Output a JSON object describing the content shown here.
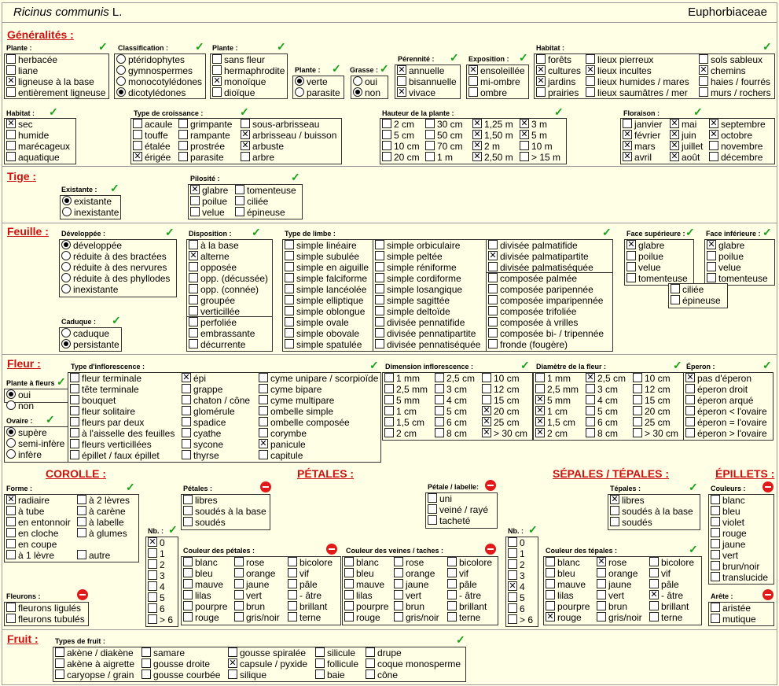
{
  "header": {
    "species": "Ricinus communis",
    "author": "L.",
    "family": "Euphorbiaceae"
  },
  "sections": {
    "generalites": "Généralités :",
    "tige": "Tige :",
    "feuille": "Feuille :",
    "fleur": "Fleur :",
    "fruit": "Fruit :",
    "corolle": "COROLLE :",
    "petales": "PÉTALES :",
    "sepales": "SÉPALES / TÉPALES :",
    "epillets": "ÉPILLETS :"
  },
  "labels": {
    "plante1": "Plante :",
    "classification": "Classification :",
    "plante2": "Plante :",
    "plante3": "Plante :",
    "grasse": "Grasse :",
    "perennite": "Pérennité :",
    "exposition": "Exposition :",
    "habitat1": "Habitat :",
    "habitat2": "Habitat :",
    "croissance": "Type de croissance :",
    "hauteur": "Hauteur de la plante :",
    "floraison": "Floraison :",
    "existante": "Existante :",
    "pilosite": "Pilosité :",
    "developpee": "Développée :",
    "disposition": "Disposition :",
    "limbe": "Type de limbe :",
    "face_sup": "Face supérieure :",
    "face_inf": "Face inférieure :",
    "caduque": "Caduque :",
    "inflorescence": "Type d'inflorescence :",
    "dim_infl": "Dimension inflorescence :",
    "diam_fleur": "Diamètre de la fleur :",
    "eperon": "Éperon :",
    "plante_fleurs": "Plante à fleurs",
    "ovaire": "Ovaire :",
    "forme": "Forme :",
    "fleurons": "Fleurons :",
    "petales": "Pétales :",
    "petale_labelle": "Pétale / labelle:",
    "nb1": "Nb. :",
    "couleur_petales": "Couleur des pétales :",
    "couleur_veines": "Couleur des veines / taches :",
    "tepales": "Tépales :",
    "nb2": "Nb. :",
    "couleur_tepales": "Couleur des tépales :",
    "couleurs": "Couleurs :",
    "arete": "Arête :",
    "types_fruit": "Types de fruit :"
  },
  "options": {
    "plante1": [
      [
        "herbacée",
        0
      ],
      [
        "liane",
        0
      ],
      [
        "ligneuse à la base",
        1
      ],
      [
        "entièrement ligneuse",
        0
      ]
    ],
    "classification": [
      [
        "ptéridophytes",
        0
      ],
      [
        "gymnospermes",
        0
      ],
      [
        "monocotylédones",
        0
      ],
      [
        "dicotylédones",
        1
      ]
    ],
    "plante2": [
      [
        "sans fleur",
        0
      ],
      [
        "hermaphrodite",
        0
      ],
      [
        "monoïque",
        1
      ],
      [
        "dioïque",
        0
      ]
    ],
    "plante3": [
      [
        "verte",
        1
      ],
      [
        "parasite",
        0
      ]
    ],
    "grasse": [
      [
        "oui",
        0
      ],
      [
        "non",
        1
      ]
    ],
    "perennite": [
      [
        "annuelle",
        1
      ],
      [
        "bisannuelle",
        0
      ],
      [
        "vivace",
        1
      ]
    ],
    "exposition": [
      [
        "ensoleillée",
        1
      ],
      [
        "mi-ombre",
        0
      ],
      [
        "ombre",
        0
      ]
    ],
    "habitat1a": [
      [
        "forêts",
        0
      ],
      [
        "cultures",
        1
      ],
      [
        "jardins",
        1
      ],
      [
        "prairies",
        0
      ]
    ],
    "habitat1b": [
      [
        "lieux pierreux",
        0
      ],
      [
        "lieux incultes",
        1
      ],
      [
        "lieux humides / mares",
        0
      ],
      [
        "lieux saumâtres / mer",
        0
      ]
    ],
    "habitat1c": [
      [
        "sols sableux",
        0
      ],
      [
        "chemins",
        1
      ],
      [
        "haies / fourrés",
        0
      ],
      [
        "murs / rochers",
        0
      ]
    ],
    "habitat2": [
      [
        "sec",
        1
      ],
      [
        "humide",
        0
      ],
      [
        "marécageux",
        0
      ],
      [
        "aquatique",
        0
      ]
    ],
    "croissance_a": [
      [
        "acaule",
        0
      ],
      [
        "touffe",
        0
      ],
      [
        "étalée",
        0
      ],
      [
        "érigée",
        1
      ]
    ],
    "croissance_b": [
      [
        "grimpante",
        0
      ],
      [
        "rampante",
        0
      ],
      [
        "prostrée",
        0
      ],
      [
        "parasite",
        0
      ]
    ],
    "croissance_c": [
      [
        "sous-arbrisseau",
        0
      ],
      [
        "arbrisseau / buisson",
        1
      ],
      [
        "arbuste",
        1
      ],
      [
        "arbre",
        0
      ]
    ],
    "hauteur_a": [
      [
        "2 cm",
        0
      ],
      [
        "5 cm",
        0
      ],
      [
        "10 cm",
        0
      ],
      [
        "20 cm",
        0
      ]
    ],
    "hauteur_b": [
      [
        "30 cm",
        0
      ],
      [
        "50 cm",
        0
      ],
      [
        "70 cm",
        0
      ],
      [
        "1 m",
        0
      ]
    ],
    "hauteur_c": [
      [
        "1,25 m",
        1
      ],
      [
        "1,50 m",
        1
      ],
      [
        "2 m",
        1
      ],
      [
        "2,50 m",
        1
      ]
    ],
    "hauteur_d": [
      [
        "3 m",
        1
      ],
      [
        "5 m",
        1
      ],
      [
        "10 m",
        0
      ],
      [
        "> 15 m",
        0
      ]
    ],
    "floraison_a": [
      [
        "janvier",
        0
      ],
      [
        "février",
        1
      ],
      [
        "mars",
        1
      ],
      [
        "avril",
        1
      ]
    ],
    "floraison_b": [
      [
        "mai",
        1
      ],
      [
        "juin",
        1
      ],
      [
        "juillet",
        1
      ],
      [
        "août",
        1
      ]
    ],
    "floraison_c": [
      [
        "septembre",
        1
      ],
      [
        "octobre",
        1
      ],
      [
        "novembre",
        0
      ],
      [
        "décembre",
        0
      ]
    ],
    "existante": [
      [
        "existante",
        1
      ],
      [
        "inexistante",
        0
      ]
    ],
    "pilosite_a": [
      [
        "glabre",
        1
      ],
      [
        "poilue",
        0
      ],
      [
        "velue",
        0
      ]
    ],
    "pilosite_b": [
      [
        "tomenteuse",
        0
      ],
      [
        "ciliée",
        0
      ],
      [
        "épineuse",
        0
      ]
    ],
    "developpee": [
      [
        "développée",
        1
      ],
      [
        "réduite à des bractées",
        0
      ],
      [
        "réduite à des nervures",
        0
      ],
      [
        "réduite à des phyllodes",
        0
      ],
      [
        "inexistante",
        0
      ]
    ],
    "caduque": [
      [
        "caduque",
        0
      ],
      [
        "persistante",
        1
      ]
    ],
    "disposition_a": [
      [
        "à la base",
        0
      ],
      [
        "alterne",
        1
      ],
      [
        "opposée",
        0
      ],
      [
        "opp. (décussée)",
        0
      ],
      [
        "opp. (connée)",
        0
      ],
      [
        "groupée",
        0
      ],
      [
        "verticillée",
        0
      ]
    ],
    "disposition_b": [
      [
        "perfoliée",
        0
      ],
      [
        "embrassante",
        0
      ],
      [
        "décurrente",
        0
      ]
    ],
    "limbe_a": [
      [
        "simple linéaire",
        0
      ],
      [
        "simple subulée",
        0
      ],
      [
        "simple en aiguille",
        0
      ],
      [
        "simple falciforme",
        0
      ],
      [
        "simple lancéolée",
        0
      ],
      [
        "simple elliptique",
        0
      ],
      [
        "simple oblongue",
        0
      ],
      [
        "simple ovale",
        0
      ],
      [
        "simple obovale",
        0
      ],
      [
        "simple spatulée",
        0
      ]
    ],
    "limbe_b": [
      [
        "simple orbiculaire",
        0
      ],
      [
        "simple peltée",
        0
      ],
      [
        "simple réniforme",
        0
      ],
      [
        "simple cordiforme",
        0
      ],
      [
        "simple losangique",
        0
      ],
      [
        "simple sagittée",
        0
      ],
      [
        "simple deltoïde",
        0
      ],
      [
        "divisée pennatifide",
        0
      ],
      [
        "divisée pennatipartite",
        0
      ],
      [
        "divisée pennatiséquée",
        0
      ]
    ],
    "limbe_c": [
      [
        "divisée palmatifide",
        0
      ],
      [
        "divisée palmatipartite",
        1
      ],
      [
        "divisée palmatiséquée",
        0
      ]
    ],
    "limbe_d": [
      [
        "composée palmée",
        0
      ],
      [
        "composée paripennée",
        0
      ],
      [
        "composée imparipennée",
        0
      ],
      [
        "composée trifoliée",
        0
      ],
      [
        "composée à vrilles",
        0
      ],
      [
        "composée bi- / tripennée",
        0
      ],
      [
        "fronde (fougère)",
        0
      ]
    ],
    "face_sup": [
      [
        "glabre",
        1
      ],
      [
        "poilue",
        0
      ],
      [
        "velue",
        0
      ],
      [
        "tomenteuse",
        0
      ]
    ],
    "face_inf": [
      [
        "glabre",
        1
      ],
      [
        "poilue",
        0
      ],
      [
        "velue",
        0
      ],
      [
        "tomenteuse",
        0
      ]
    ],
    "face_inf2": [
      [
        "ciliée",
        0
      ],
      [
        "épineuse",
        0
      ]
    ],
    "plante_fleurs": [
      [
        "oui",
        1
      ],
      [
        "non",
        0
      ]
    ],
    "ovaire": [
      [
        "supère",
        1
      ],
      [
        "semi-infère",
        0
      ],
      [
        "infère",
        0
      ]
    ],
    "infl_a": [
      [
        "fleur terminale",
        0
      ],
      [
        "tête terminale",
        0
      ],
      [
        "bouquet",
        0
      ],
      [
        "fleur solitaire",
        0
      ],
      [
        "fleurs par deux",
        0
      ],
      [
        "à l'aisselle des feuilles",
        0
      ],
      [
        "fleurs verticillées",
        0
      ],
      [
        "épillet / faux épillet",
        0
      ]
    ],
    "infl_b": [
      [
        "épi",
        1
      ],
      [
        "grappe",
        0
      ],
      [
        "chaton / cône",
        0
      ],
      [
        "glomérule",
        0
      ],
      [
        "spadice",
        0
      ],
      [
        "cyathe",
        0
      ],
      [
        "sycone",
        0
      ],
      [
        "thyrse",
        0
      ]
    ],
    "infl_c": [
      [
        "cyme unipare / scorpioïde",
        0
      ],
      [
        "cyme bipare",
        0
      ],
      [
        "cyme multipare",
        0
      ],
      [
        "ombelle simple",
        0
      ],
      [
        "ombelle composée",
        0
      ],
      [
        "corymbe",
        0
      ],
      [
        "panicule",
        1
      ],
      [
        "capitule",
        0
      ]
    ],
    "dim_a": [
      [
        "1 mm",
        0
      ],
      [
        "2,5 mm",
        0
      ],
      [
        "5 mm",
        0
      ],
      [
        "1 cm",
        0
      ],
      [
        "1,5 cm",
        0
      ],
      [
        "2 cm",
        0
      ]
    ],
    "dim_b": [
      [
        "2,5 cm",
        0
      ],
      [
        "3 cm",
        0
      ],
      [
        "4 cm",
        0
      ],
      [
        "5 cm",
        0
      ],
      [
        "6 cm",
        0
      ],
      [
        "8 cm",
        0
      ]
    ],
    "dim_c": [
      [
        "10 cm",
        0
      ],
      [
        "12 cm",
        0
      ],
      [
        "15 cm",
        0
      ],
      [
        "20 cm",
        1
      ],
      [
        "25 cm",
        1
      ],
      [
        "> 30 cm",
        1
      ]
    ],
    "diam_a": [
      [
        "1 mm",
        0
      ],
      [
        "2,5 mm",
        0
      ],
      [
        "5 mm",
        1
      ],
      [
        "1 cm",
        1
      ],
      [
        "1,5 cm",
        1
      ],
      [
        "2 cm",
        1
      ]
    ],
    "diam_b": [
      [
        "2,5 cm",
        1
      ],
      [
        "3 cm",
        0
      ],
      [
        "4 cm",
        0
      ],
      [
        "5 cm",
        0
      ],
      [
        "6 cm",
        0
      ],
      [
        "8 cm",
        0
      ]
    ],
    "diam_c": [
      [
        "10 cm",
        0
      ],
      [
        "12 cm",
        0
      ],
      [
        "15 cm",
        0
      ],
      [
        "20 cm",
        0
      ],
      [
        "25 cm",
        0
      ],
      [
        "> 30 cm",
        0
      ]
    ],
    "eperon": [
      [
        "pas d'éperon",
        1
      ],
      [
        "éperon droit",
        0
      ],
      [
        "éperon arqué",
        0
      ],
      [
        "éperon < l'ovaire",
        0
      ],
      [
        "éperon = l'ovaire",
        0
      ],
      [
        "éperon > l'ovaire",
        0
      ]
    ],
    "forme_a": [
      [
        "radiaire",
        1
      ],
      [
        "à tube",
        0
      ],
      [
        "en entonnoir",
        0
      ],
      [
        "en cloche",
        0
      ],
      [
        "en coupe",
        0
      ],
      [
        "à 1 lèvre",
        0
      ]
    ],
    "forme_b": [
      [
        "à 2 lèvres",
        0
      ],
      [
        "à carène",
        0
      ],
      [
        "à labelle",
        0
      ],
      [
        "à glumes",
        0
      ],
      [
        "",
        0
      ],
      [
        "autre",
        0
      ]
    ],
    "fleurons": [
      [
        "fleurons ligulés",
        0
      ],
      [
        "fleurons tubulés",
        0
      ]
    ],
    "nb1": [
      [
        "0",
        1
      ],
      [
        "1",
        0
      ],
      [
        "2",
        0
      ],
      [
        "3",
        0
      ],
      [
        "4",
        0
      ],
      [
        "5",
        0
      ],
      [
        "6",
        0
      ],
      [
        "> 6",
        0
      ]
    ],
    "petales": [
      [
        "libres",
        0
      ],
      [
        "soudés à la base",
        0
      ],
      [
        "soudés",
        0
      ]
    ],
    "labelle": [
      [
        "uni",
        0
      ],
      [
        "veiné / rayé",
        0
      ],
      [
        "tacheté",
        0
      ]
    ],
    "cp_a": [
      [
        "blanc",
        0
      ],
      [
        "bleu",
        0
      ],
      [
        "mauve",
        0
      ],
      [
        "lilas",
        0
      ],
      [
        "pourpre",
        0
      ],
      [
        "rouge",
        0
      ]
    ],
    "cp_b": [
      [
        "rose",
        0
      ],
      [
        "orange",
        0
      ],
      [
        "jaune",
        0
      ],
      [
        "vert",
        0
      ],
      [
        "brun",
        0
      ],
      [
        "gris/noir",
        0
      ]
    ],
    "cp_c": [
      [
        "bicolore",
        0
      ],
      [
        "vif",
        0
      ],
      [
        "pâle",
        0
      ],
      [
        "- âtre",
        0
      ],
      [
        "brillant",
        0
      ],
      [
        "terne",
        0
      ]
    ],
    "cv_a": [
      [
        "blanc",
        0
      ],
      [
        "bleu",
        0
      ],
      [
        "mauve",
        0
      ],
      [
        "lilas",
        0
      ],
      [
        "pourpre",
        0
      ],
      [
        "rouge",
        0
      ]
    ],
    "cv_b": [
      [
        "rose",
        0
      ],
      [
        "orange",
        0
      ],
      [
        "jaune",
        0
      ],
      [
        "vert",
        0
      ],
      [
        "brun",
        0
      ],
      [
        "gris/noir",
        0
      ]
    ],
    "cv_c": [
      [
        "bicolore",
        0
      ],
      [
        "vif",
        0
      ],
      [
        "pâle",
        0
      ],
      [
        "- âtre",
        0
      ],
      [
        "brillant",
        0
      ],
      [
        "terne",
        0
      ]
    ],
    "tepales": [
      [
        "libres",
        1
      ],
      [
        "soudés à la base",
        0
      ],
      [
        "soudés",
        0
      ]
    ],
    "nb2": [
      [
        "0",
        0
      ],
      [
        "1",
        0
      ],
      [
        "2",
        0
      ],
      [
        "3",
        0
      ],
      [
        "4",
        1
      ],
      [
        "5",
        0
      ],
      [
        "6",
        0
      ],
      [
        "> 6",
        0
      ]
    ],
    "ct_a": [
      [
        "blanc",
        0
      ],
      [
        "bleu",
        0
      ],
      [
        "mauve",
        0
      ],
      [
        "lilas",
        0
      ],
      [
        "pourpre",
        0
      ],
      [
        "rouge",
        1
      ]
    ],
    "ct_b": [
      [
        "rose",
        1
      ],
      [
        "orange",
        0
      ],
      [
        "jaune",
        0
      ],
      [
        "vert",
        0
      ],
      [
        "brun",
        0
      ],
      [
        "gris/noir",
        0
      ]
    ],
    "ct_c": [
      [
        "bicolore",
        0
      ],
      [
        "vif",
        0
      ],
      [
        "pâle",
        0
      ],
      [
        "- âtre",
        1
      ],
      [
        "brillant",
        0
      ],
      [
        "terne",
        0
      ]
    ],
    "couleurs": [
      [
        "blanc",
        0
      ],
      [
        "bleu",
        0
      ],
      [
        "violet",
        0
      ],
      [
        "rouge",
        0
      ],
      [
        "jaune",
        0
      ],
      [
        "vert",
        0
      ],
      [
        "brun/noir",
        0
      ],
      [
        "translucide",
        0
      ]
    ],
    "arete": [
      [
        "aristée",
        0
      ],
      [
        "mutique",
        0
      ]
    ],
    "fruit_a": [
      [
        "akène / diakène",
        0
      ],
      [
        "akène à aigrette",
        0
      ],
      [
        "caryopse / grain",
        0
      ]
    ],
    "fruit_b": [
      [
        "samare",
        0
      ],
      [
        "gousse droite",
        0
      ],
      [
        "gousse courbée",
        0
      ]
    ],
    "fruit_c": [
      [
        "gousse spiralée",
        0
      ],
      [
        "capsule / pyxide",
        1
      ],
      [
        "silique",
        0
      ]
    ],
    "fruit_d": [
      [
        "silicule",
        0
      ],
      [
        "follicule",
        0
      ],
      [
        "baie",
        0
      ]
    ],
    "fruit_e": [
      [
        "drupe",
        0
      ],
      [
        "coque monosperme",
        0
      ],
      [
        "cône",
        0
      ]
    ]
  }
}
